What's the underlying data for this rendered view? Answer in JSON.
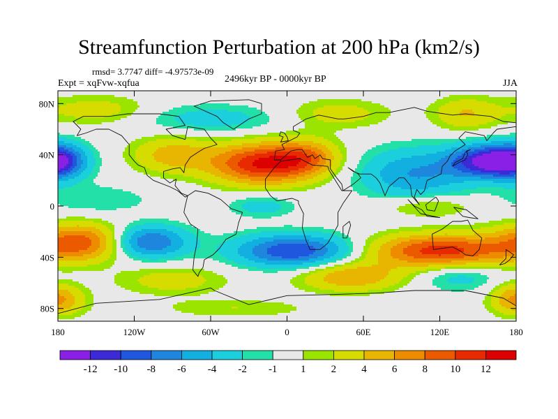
{
  "chart_data": {
    "type": "heatmap",
    "title": "Streamfunction Perturbation at 200 hPa (km2/s)",
    "stats_text": "rmsd= 3.7747  diff= -4.97573e-09",
    "experiment_text": "Expt = xqFvw-xqfua",
    "period_text": "2496kyr BP - 0000kyr BP",
    "season": "JJA",
    "x_ticks": [
      "180",
      "120W",
      "60W",
      "0",
      "60E",
      "120E",
      "180"
    ],
    "y_ticks": [
      "80N",
      "40N",
      "0",
      "40S",
      "80S"
    ],
    "xlim": [
      -180,
      180
    ],
    "ylim": [
      -90,
      90
    ],
    "colorbar": {
      "labels": [
        "-12",
        "-10",
        "-8",
        "-6",
        "-4",
        "-2",
        "-1",
        "1",
        "2",
        "4",
        "6",
        "8",
        "10",
        "12"
      ],
      "bounds": [
        -12,
        -10,
        -8,
        -6,
        -4,
        -2,
        -1,
        1,
        2,
        4,
        6,
        8,
        10,
        12
      ],
      "colors": [
        "#8a1fe6",
        "#3b2ad6",
        "#1f58df",
        "#1f86dd",
        "#11b0e0",
        "#1ccfdc",
        "#22e0a8",
        "#e8e8e8",
        "#9ae400",
        "#d6dc00",
        "#e8b600",
        "#ee8c00",
        "#ec5a00",
        "#e82a00",
        "#dc0000"
      ]
    },
    "field_centers": [
      {
        "lon": -20,
        "lat": 33,
        "value": 12,
        "spread_lon": 28,
        "spread_lat": 11
      },
      {
        "lon": 15,
        "lat": 38,
        "value": 6,
        "spread_lon": 18,
        "spread_lat": 10
      },
      {
        "lon": -90,
        "lat": 40,
        "value": 5,
        "spread_lon": 22,
        "spread_lat": 10
      },
      {
        "lon": 100,
        "lat": 25,
        "value": -6,
        "spread_lon": 30,
        "spread_lat": 14
      },
      {
        "lon": 160,
        "lat": 35,
        "value": -13,
        "spread_lon": 22,
        "spread_lat": 9
      },
      {
        "lon": -178,
        "lat": 35,
        "value": -7,
        "spread_lon": 14,
        "spread_lat": 10
      },
      {
        "lon": -160,
        "lat": -28,
        "value": 9,
        "spread_lon": 26,
        "spread_lat": 10
      },
      {
        "lon": -110,
        "lat": -28,
        "value": -9,
        "spread_lon": 22,
        "spread_lat": 9
      },
      {
        "lon": 5,
        "lat": -35,
        "value": -10,
        "spread_lon": 32,
        "spread_lat": 9
      },
      {
        "lon": 120,
        "lat": -35,
        "value": 11,
        "spread_lon": 38,
        "spread_lat": 9
      },
      {
        "lon": 50,
        "lat": -55,
        "value": 6,
        "spread_lon": 28,
        "spread_lat": 8
      },
      {
        "lon": 135,
        "lat": -55,
        "value": -3,
        "spread_lon": 22,
        "spread_lat": 8
      },
      {
        "lon": -90,
        "lat": -58,
        "value": 3,
        "spread_lon": 30,
        "spread_lat": 8
      },
      {
        "lon": -60,
        "lat": 68,
        "value": -3,
        "spread_lon": 40,
        "spread_lat": 8
      },
      {
        "lon": 40,
        "lat": 72,
        "value": 3,
        "spread_lon": 28,
        "spread_lat": 8
      },
      {
        "lon": 140,
        "lat": 72,
        "value": 4,
        "spread_lon": 18,
        "spread_lat": 9
      },
      {
        "lon": -150,
        "lat": 75,
        "value": 3,
        "spread_lon": 30,
        "spread_lat": 8
      },
      {
        "lon": -20,
        "lat": 0,
        "value": -3,
        "spread_lon": 18,
        "spread_lat": 6
      },
      {
        "lon": 110,
        "lat": 0,
        "value": 3,
        "spread_lon": 25,
        "spread_lat": 6
      },
      {
        "lon": -150,
        "lat": 5,
        "value": -2,
        "spread_lon": 30,
        "spread_lat": 8
      },
      {
        "lon": -178,
        "lat": -75,
        "value": 4,
        "spread_lon": 15,
        "spread_lat": 8
      },
      {
        "lon": 178,
        "lat": -70,
        "value": 3,
        "spread_lon": 12,
        "spread_lat": 8
      },
      {
        "lon": -40,
        "lat": -80,
        "value": 2,
        "spread_lon": 40,
        "spread_lat": 5
      }
    ]
  }
}
